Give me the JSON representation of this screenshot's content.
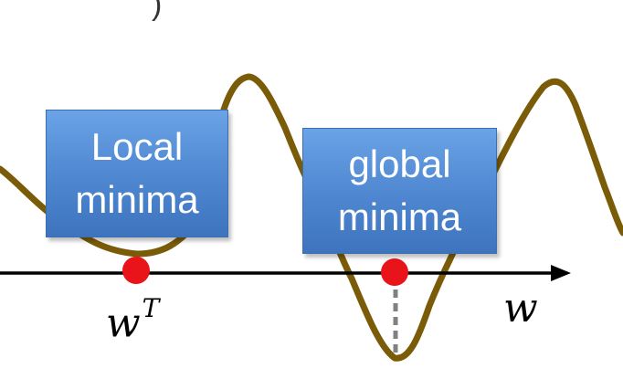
{
  "callouts": {
    "local": "Local\nminima",
    "global": "global\nminima"
  },
  "axis": {
    "marker_label_base": "w",
    "marker_label_sup": "T",
    "axis_label": "w"
  },
  "colors": {
    "curve": "#7a5c08",
    "axis": "#000000",
    "marker": "#e8141a",
    "dashed_line": "#808080",
    "box_fill": "#4e86d0"
  },
  "icons": {
    "axis_arrow": "arrowhead-right-icon"
  }
}
